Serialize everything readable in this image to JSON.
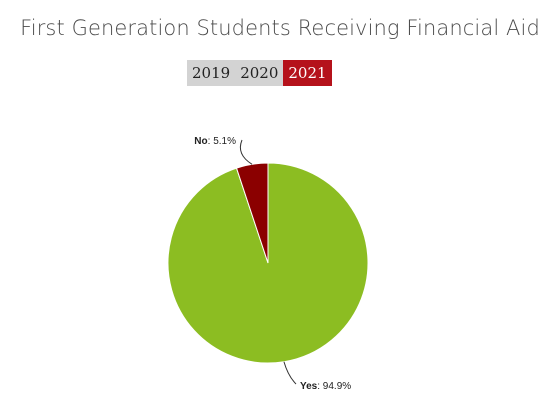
{
  "title": "First Generation Students Receiving Financial Aid",
  "year_tabs": [
    {
      "label": "2019",
      "active": false
    },
    {
      "label": "2020",
      "active": false
    },
    {
      "label": "2021",
      "active": true
    }
  ],
  "colors": {
    "yes": "#8cbd22",
    "no": "#8b0000",
    "active_tab": "#b5121b",
    "inactive_tab": "#d3d3d3"
  },
  "chart_data": {
    "type": "pie",
    "title": "First Generation Students Receiving Financial Aid",
    "slices": [
      {
        "name": "Yes",
        "value": 94.9,
        "label": "94.9%",
        "color": "#8cbd22"
      },
      {
        "name": "No",
        "value": 5.1,
        "label": "5.1%",
        "color": "#8b0000"
      }
    ],
    "legend": "none"
  }
}
